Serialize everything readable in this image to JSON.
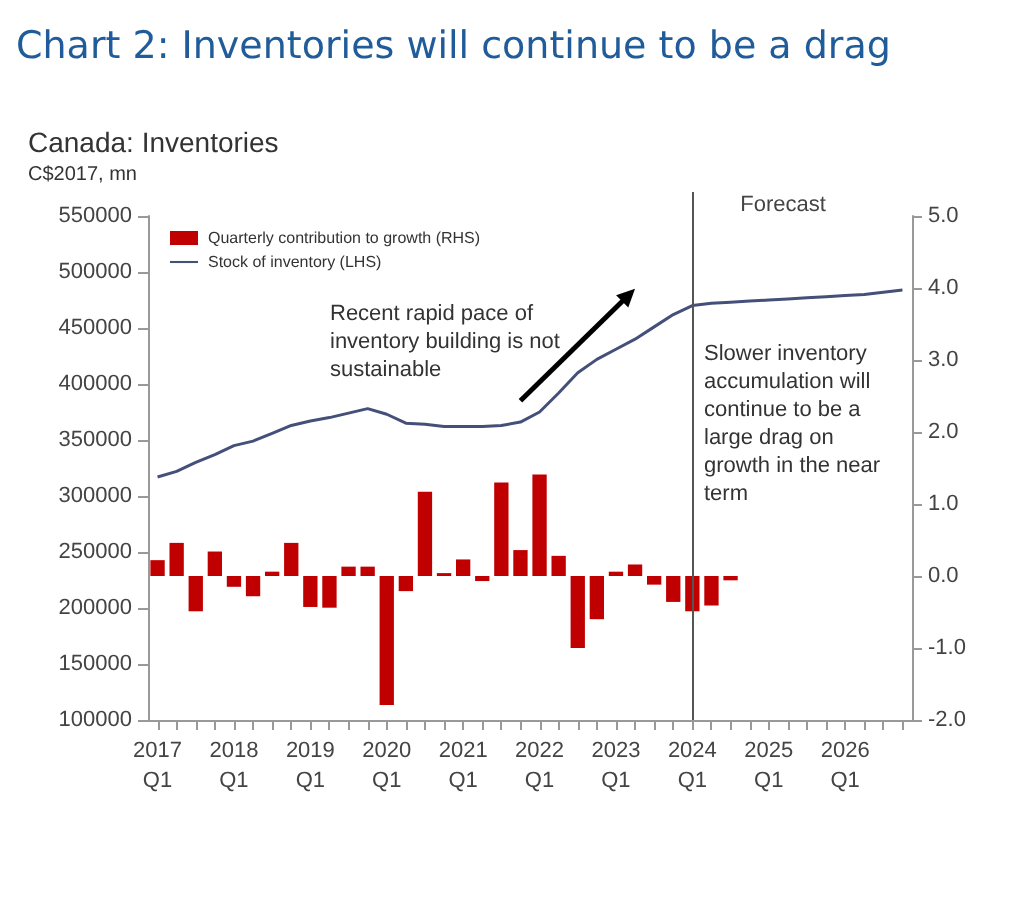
{
  "chart_data": {
    "type": "bar",
    "title": "Chart 2: Inventories will continue to be a drag",
    "subtitle": "Canada: Inventories",
    "ylabel": "C$2017, mn",
    "categories": [
      "2017 Q1",
      null,
      null,
      null,
      "2018 Q1",
      null,
      null,
      null,
      "2019 Q1",
      null,
      null,
      null,
      "2020 Q1",
      null,
      null,
      null,
      "2021 Q1",
      null,
      null,
      null,
      "2022 Q1",
      null,
      null,
      null,
      "2023 Q1",
      null,
      null,
      null,
      "2024 Q1",
      null,
      null,
      null,
      "2025 Q1",
      null,
      null,
      null,
      "2026 Q1",
      null,
      null,
      null
    ],
    "series": [
      {
        "name": "Quarterly contribution to growth (RHS)",
        "axis": "y2",
        "color": "#c00000",
        "values": [
          0.22,
          0.46,
          -0.49,
          0.34,
          -0.15,
          -0.28,
          0.06,
          0.46,
          -0.43,
          -0.44,
          0.13,
          0.13,
          -1.79,
          -0.21,
          1.17,
          0.04,
          0.23,
          -0.07,
          1.3,
          0.36,
          1.41,
          0.28,
          -1.0,
          -0.6,
          0.06,
          0.16,
          -0.12,
          -0.36,
          -0.49,
          -0.41,
          -0.06,
          0,
          0,
          0,
          0,
          0,
          0,
          0,
          0,
          0
        ]
      },
      {
        "name": "Stock of inventory (LHS)",
        "type": "line",
        "color": "#44507a",
        "values": [
          317000,
          322000,
          330000,
          337000,
          345000,
          349000,
          356000,
          363000,
          367000,
          370000,
          374000,
          378000,
          373000,
          365000,
          364000,
          362000,
          362000,
          362000,
          363000,
          366000,
          375000,
          392000,
          410000,
          422000,
          431000,
          440000,
          451000,
          462000,
          470000,
          472000,
          473000,
          474000,
          475000,
          476000,
          477000,
          478000,
          479000,
          480000,
          482000,
          484000
        ]
      }
    ],
    "ylim": [
      100000,
      550000
    ],
    "yticks": [
      100000,
      150000,
      200000,
      250000,
      300000,
      350000,
      400000,
      450000,
      500000,
      550000
    ],
    "y2lim": [
      -2,
      5
    ],
    "y2ticks": [
      {
        "value": -2,
        "label": "-2.0"
      },
      {
        "value": -1,
        "label": "-1.0"
      },
      {
        "value": 0,
        "label": "0.0"
      },
      {
        "value": 1,
        "label": "1.0"
      },
      {
        "value": 2,
        "label": "2.0"
      },
      {
        "value": 3,
        "label": "3.0"
      },
      {
        "value": 4,
        "label": "4.0"
      },
      {
        "value": 5,
        "label": "5.0"
      }
    ],
    "ref_lines": [
      {
        "axis": "x",
        "value": "2024 Q1",
        "label": "Forecast"
      }
    ],
    "annotations": [
      "Recent rapid pace of inventory building is not sustainable",
      "Slower inventory accumulation will continue to be a large drag on growth in the near term"
    ],
    "legend": "top left",
    "grid": false
  }
}
